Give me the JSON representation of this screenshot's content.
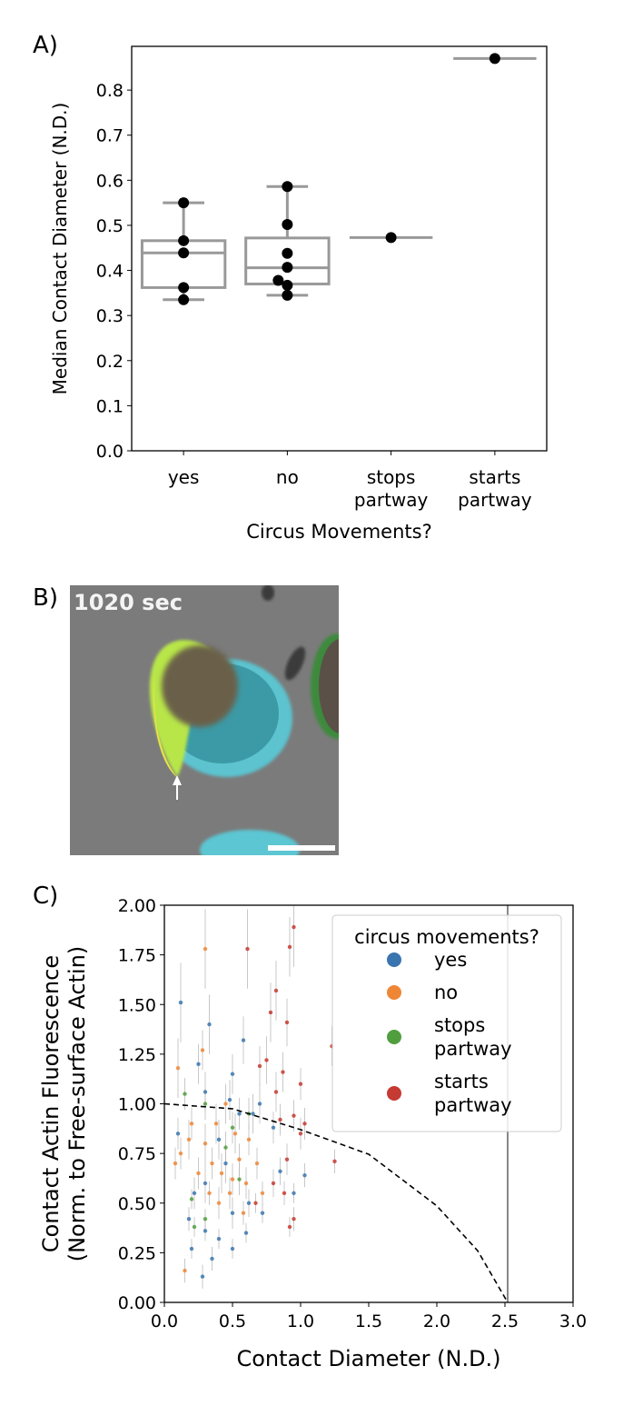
{
  "chart_data": [
    {
      "panel_label": "A)",
      "type": "box",
      "xlabel": "Circus Movements?",
      "ylabel": "Median Contact Diameter (N.D.)",
      "ylim": [
        0,
        0.897
      ],
      "yticks": [
        "0.0",
        "0.1",
        "0.2",
        "0.3",
        "0.4",
        "0.5",
        "0.6",
        "0.7",
        "0.8"
      ],
      "categories": [
        {
          "label": [
            "yes"
          ],
          "whisker": [
            0.335,
            0.55
          ],
          "box": [
            0.362,
            0.466
          ],
          "median": 0.439,
          "points": [
            0.55,
            0.466,
            0.439,
            0.362,
            0.335
          ]
        },
        {
          "label": [
            "no"
          ],
          "whisker": [
            0.345,
            0.586
          ],
          "box": [
            0.37,
            0.472
          ],
          "median": 0.406,
          "points": [
            0.586,
            0.502,
            0.438,
            0.407,
            0.378,
            0.367,
            0.345
          ]
        },
        {
          "label": [
            "stops",
            "partway"
          ],
          "whisker": null,
          "box": null,
          "median": 0.473,
          "points": [
            0.473
          ]
        },
        {
          "label": [
            "starts",
            "partway"
          ],
          "whisker": null,
          "box": null,
          "median": 0.87,
          "points": [
            0.87
          ]
        }
      ],
      "colors": {
        "box": "#999999",
        "point": "#000000"
      }
    },
    {
      "panel_label": "B)",
      "type": "image",
      "timestamp": "1020 sec"
    },
    {
      "panel_label": "C)",
      "type": "scatter",
      "xlabel": "Contact Diameter (N.D.)",
      "ylabel": [
        "Contact Actin Fluorescence",
        "(Norm. to Free-surface Actin)"
      ],
      "xlim": [
        0,
        3.0
      ],
      "ylim": [
        0,
        2.0
      ],
      "xticks": [
        "0.0",
        "0.5",
        "1.0",
        "1.5",
        "2.0",
        "2.5",
        "3.0"
      ],
      "yticks": [
        "0.00",
        "0.25",
        "0.50",
        "0.75",
        "1.00",
        "1.25",
        "1.50",
        "1.75",
        "2.00"
      ],
      "vline_x": 2.52,
      "dashed_curve": [
        [
          0,
          1.0
        ],
        [
          0.5,
          0.975
        ],
        [
          1.0,
          0.87
        ],
        [
          1.5,
          0.746
        ],
        [
          2.0,
          0.486
        ],
        [
          2.3,
          0.26
        ],
        [
          2.52,
          0
        ]
      ],
      "legend": {
        "title": "circus movements?",
        "placement": "top-right"
      },
      "series": [
        {
          "name": [
            "yes"
          ],
          "color": "#3b75af",
          "points": [
            [
              0.12,
              1.51,
              0.2
            ],
            [
              0.3,
              1.06,
              0.1
            ],
            [
              0.33,
              1.4,
              0.15
            ],
            [
              0.5,
              1.15,
              0.1
            ],
            [
              0.48,
              1.02,
              0.1
            ],
            [
              0.55,
              0.95,
              0.08
            ],
            [
              0.4,
              0.82,
              0.1
            ],
            [
              0.45,
              0.7,
              0.1
            ],
            [
              0.3,
              0.6,
              0.1
            ],
            [
              0.22,
              0.55,
              0.08
            ],
            [
              0.5,
              0.45,
              0.08
            ],
            [
              0.62,
              0.5,
              0.07
            ],
            [
              0.18,
              0.42,
              0.06
            ],
            [
              0.3,
              0.36,
              0.05
            ],
            [
              0.4,
              0.32,
              0.05
            ],
            [
              0.35,
              0.22,
              0.06
            ],
            [
              0.28,
              0.13,
              0.06
            ],
            [
              0.5,
              0.27,
              0.05
            ],
            [
              0.6,
              0.35,
              0.05
            ],
            [
              0.2,
              0.27,
              0.05
            ],
            [
              0.65,
              0.95,
              0.1
            ],
            [
              0.7,
              1.0,
              0.1
            ],
            [
              0.85,
              0.66,
              0.07
            ],
            [
              0.95,
              0.55,
              0.05
            ],
            [
              1.03,
              0.64,
              0.06
            ],
            [
              0.1,
              0.85,
              0.08
            ],
            [
              0.25,
              1.2,
              0.1
            ],
            [
              0.58,
              1.32,
              0.12
            ],
            [
              0.8,
              0.88,
              0.08
            ],
            [
              0.72,
              0.45,
              0.05
            ]
          ]
        },
        {
          "name": [
            "no"
          ],
          "color": "#ef8636",
          "points": [
            [
              0.15,
              0.16,
              0.06
            ],
            [
              0.3,
              1.78,
              0.2
            ],
            [
              0.1,
              1.18,
              0.15
            ],
            [
              0.12,
              0.75,
              0.08
            ],
            [
              0.2,
              0.9,
              0.08
            ],
            [
              0.3,
              0.8,
              0.1
            ],
            [
              0.35,
              0.7,
              0.08
            ],
            [
              0.42,
              0.65,
              0.1
            ],
            [
              0.48,
              0.55,
              0.08
            ],
            [
              0.55,
              0.72,
              0.08
            ],
            [
              0.38,
              0.9,
              0.1
            ],
            [
              0.25,
              0.65,
              0.08
            ],
            [
              0.6,
              0.6,
              0.08
            ],
            [
              0.45,
              1.0,
              0.1
            ],
            [
              0.28,
              1.27,
              0.1
            ],
            [
              0.52,
              0.85,
              0.1
            ],
            [
              0.62,
              0.82,
              0.08
            ],
            [
              0.68,
              0.7,
              0.08
            ],
            [
              0.4,
              0.5,
              0.08
            ],
            [
              0.58,
              0.45,
              0.06
            ],
            [
              0.18,
              0.82,
              0.1
            ],
            [
              0.33,
              0.55,
              0.06
            ],
            [
              0.5,
              0.62,
              0.08
            ],
            [
              0.08,
              0.7,
              0.08
            ],
            [
              0.72,
              0.55,
              0.06
            ]
          ]
        },
        {
          "name": [
            "stops",
            "partway"
          ],
          "color": "#519e3e",
          "points": [
            [
              0.2,
              0.52,
              0.05
            ],
            [
              0.22,
              0.38,
              0.05
            ],
            [
              0.3,
              0.42,
              0.05
            ],
            [
              0.45,
              0.78,
              0.08
            ],
            [
              0.55,
              0.62,
              0.08
            ],
            [
              0.62,
              0.95,
              0.08
            ],
            [
              0.5,
              0.88,
              0.08
            ],
            [
              0.3,
              1.0,
              0.08
            ],
            [
              0.15,
              1.05,
              0.08
            ]
          ]
        },
        {
          "name": [
            "starts",
            "partway"
          ],
          "color": "#c53a32",
          "points": [
            [
              0.95,
              1.89,
              0.2
            ],
            [
              0.82,
              1.57,
              0.15
            ],
            [
              0.92,
              1.79,
              0.15
            ],
            [
              0.61,
              1.78,
              0.2
            ],
            [
              0.78,
              1.46,
              0.15
            ],
            [
              0.9,
              1.41,
              0.12
            ],
            [
              0.75,
              1.22,
              0.12
            ],
            [
              1.23,
              1.29,
              0.1
            ],
            [
              0.82,
              1.06,
              0.1
            ],
            [
              0.87,
              1.16,
              0.1
            ],
            [
              0.7,
              1.19,
              0.1
            ],
            [
              1.0,
              1.1,
              0.08
            ],
            [
              0.95,
              0.94,
              0.08
            ],
            [
              1.0,
              0.85,
              0.08
            ],
            [
              1.03,
              0.9,
              0.08
            ],
            [
              0.9,
              0.72,
              0.08
            ],
            [
              0.8,
              0.6,
              0.07
            ],
            [
              0.95,
              0.42,
              0.06
            ],
            [
              0.85,
              0.92,
              0.08
            ],
            [
              1.25,
              0.71,
              0.06
            ],
            [
              0.92,
              0.38,
              0.05
            ],
            [
              0.67,
              0.5,
              0.05
            ],
            [
              0.88,
              0.55,
              0.06
            ]
          ]
        }
      ]
    }
  ]
}
